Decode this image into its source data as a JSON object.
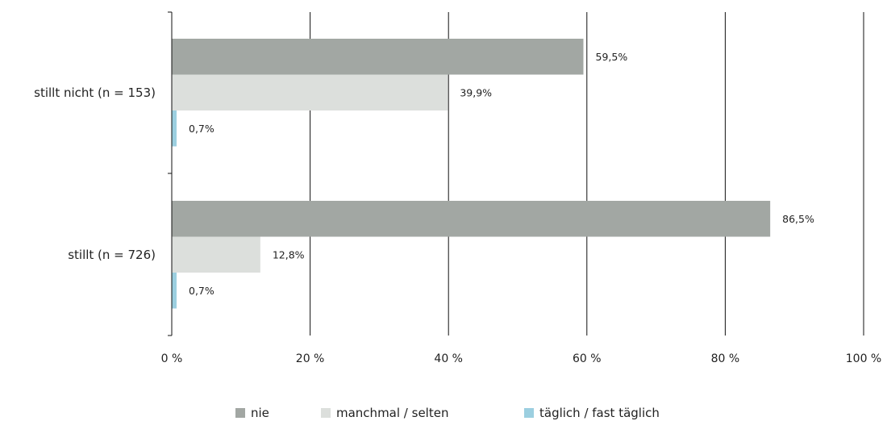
{
  "chart_data": {
    "type": "bar",
    "orientation": "horizontal",
    "categories": [
      "stillt nicht (n = 153)",
      "stillt (n = 726)"
    ],
    "series": [
      {
        "name": "nie",
        "values": [
          59.5,
          86.5
        ],
        "labels": [
          "59,5%",
          "86,5%"
        ],
        "color": "#a2a7a3"
      },
      {
        "name": "manchmal / selten",
        "values": [
          39.9,
          12.8
        ],
        "labels": [
          "39,9%",
          "12,8%"
        ],
        "color": "#dcdfdc"
      },
      {
        "name": "täglich / fast täglich",
        "values": [
          0.7,
          0.7
        ],
        "labels": [
          "0,7%",
          "0,7%"
        ],
        "color": "#9ccfe0"
      }
    ],
    "xlim": [
      0,
      100
    ],
    "xticks": [
      0,
      20,
      40,
      60,
      80,
      100
    ],
    "xtick_labels": [
      "0 %",
      "20 %",
      "40 %",
      "60 %",
      "80 %",
      "100 %"
    ],
    "grid": "vertical",
    "legend": "bottom-center",
    "title": "",
    "xlabel": "",
    "ylabel": ""
  }
}
